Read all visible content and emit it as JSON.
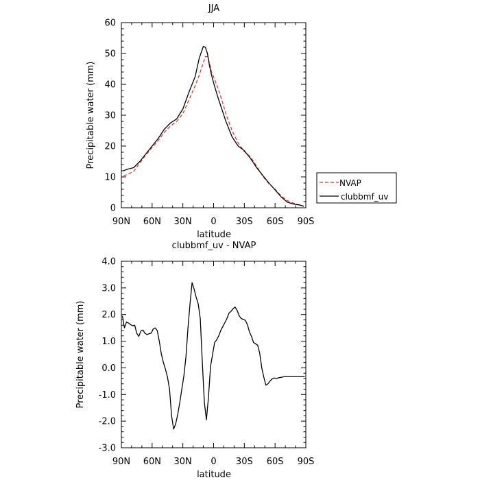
{
  "colors": {
    "nvap": "#e8342a",
    "clubbmf_uv": "#000000",
    "axis": "#000000"
  },
  "chart_data": [
    {
      "type": "line",
      "title": "JJA",
      "xlabel": "latitude",
      "ylabel": "Precipitable water (mm)",
      "xlim": [
        90,
        -90
      ],
      "ylim": [
        0,
        60
      ],
      "x_tick_values": [
        90,
        60,
        30,
        0,
        -30,
        -60,
        -90
      ],
      "x_tick_labels": [
        "90N",
        "60N",
        "30N",
        "0",
        "30S",
        "60S",
        "90S"
      ],
      "y_tick_values": [
        0,
        10,
        20,
        30,
        40,
        50,
        60
      ],
      "y_tick_labels": [
        "0",
        "10",
        "20",
        "30",
        "40",
        "50",
        "60"
      ],
      "legend": {
        "placement": "outside-right",
        "entries": [
          {
            "label": "NVAP",
            "series": "NVAP"
          },
          {
            "label": "clubbmf_uv",
            "series": "clubbmf_uv"
          }
        ]
      },
      "series": [
        {
          "name": "NVAP",
          "color": "#e8342a",
          "dash": "dashed",
          "x": [
            88,
            84,
            78,
            72,
            66,
            60,
            54,
            48,
            42,
            36,
            30,
            24,
            18,
            14,
            10,
            8,
            6,
            4,
            2,
            0,
            -4,
            -8,
            -12,
            -18,
            -24,
            -30,
            -36,
            -42,
            -48,
            -54,
            -60,
            -66,
            -72,
            -78,
            -84,
            -88
          ],
          "y": [
            10.3,
            10.8,
            11.8,
            14.5,
            17.2,
            19.5,
            21.8,
            24.5,
            26.5,
            28.0,
            30.5,
            35.0,
            39.5,
            43.0,
            47.0,
            49.0,
            49.0,
            47.0,
            44.0,
            42.5,
            39.0,
            35.0,
            30.5,
            25.0,
            21.0,
            18.2,
            16.5,
            13.5,
            10.2,
            7.8,
            6.0,
            3.8,
            2.3,
            1.5,
            0.9,
            0.5
          ]
        },
        {
          "name": "clubbmf_uv",
          "color": "#000000",
          "dash": "solid",
          "x": [
            88,
            84,
            78,
            72,
            66,
            60,
            54,
            48,
            42,
            36,
            30,
            24,
            18,
            14,
            10,
            8,
            6,
            4,
            2,
            0,
            -4,
            -8,
            -12,
            -18,
            -24,
            -30,
            -36,
            -42,
            -48,
            -54,
            -60,
            -66,
            -72,
            -78,
            -84,
            -88
          ],
          "y": [
            12.0,
            12.5,
            13.0,
            15.0,
            17.5,
            20.0,
            22.5,
            25.5,
            27.5,
            28.8,
            32.0,
            37.5,
            42.5,
            48.5,
            52.3,
            52.0,
            50.0,
            46.0,
            43.0,
            40.5,
            36.0,
            32.0,
            28.0,
            23.0,
            20.0,
            18.5,
            16.0,
            13.0,
            10.5,
            8.0,
            5.8,
            3.5,
            1.8,
            1.2,
            0.9,
            0.5
          ]
        }
      ]
    },
    {
      "type": "line",
      "title": "clubbmf_uv - NVAP",
      "xlabel": "latitude",
      "ylabel": "Precipitable water (mm)",
      "xlim": [
        90,
        -90
      ],
      "ylim": [
        -3.0,
        4.0
      ],
      "x_tick_values": [
        90,
        60,
        30,
        0,
        -30,
        -60,
        -90
      ],
      "x_tick_labels": [
        "90N",
        "60N",
        "30N",
        "0",
        "30S",
        "60S",
        "90S"
      ],
      "y_tick_values": [
        -3,
        -2,
        -1,
        0,
        1,
        2,
        3,
        4
      ],
      "y_tick_labels": [
        "-3.0",
        "-2.0",
        "-1.0",
        "0.0",
        "1.0",
        "2.0",
        "3.0",
        "4.0"
      ],
      "series": [
        {
          "color": "#000000",
          "dash": "solid",
          "x": [
            89,
            87,
            85,
            83,
            81,
            79,
            77,
            75,
            73,
            71,
            69,
            67,
            65,
            63,
            61,
            59,
            57,
            55,
            53,
            51,
            49,
            47,
            45,
            43,
            41,
            39,
            37,
            35,
            33,
            31,
            29,
            27,
            25,
            23,
            21,
            19,
            17,
            15,
            13,
            11,
            9,
            7,
            5,
            3,
            1,
            -1,
            -3,
            -5,
            -7,
            -9,
            -11,
            -13,
            -15,
            -17,
            -19,
            -21,
            -23,
            -25,
            -27,
            -29,
            -31,
            -33,
            -35,
            -37,
            -39,
            -41,
            -43,
            -45,
            -47,
            -49,
            -51,
            -53,
            -55,
            -57,
            -59,
            -61,
            -63,
            -65,
            -67,
            -69,
            -71,
            -73,
            -75,
            -77,
            -79,
            -81,
            -83,
            -85,
            -87,
            -89
          ],
          "y": [
            1.95,
            1.5,
            1.72,
            1.68,
            1.62,
            1.58,
            1.6,
            1.3,
            1.18,
            1.38,
            1.42,
            1.3,
            1.25,
            1.28,
            1.3,
            1.45,
            1.5,
            1.4,
            1.0,
            0.52,
            0.2,
            -0.05,
            -0.35,
            -0.8,
            -1.8,
            -2.3,
            -2.1,
            -1.75,
            -1.3,
            -0.8,
            -0.3,
            0.4,
            1.5,
            2.4,
            3.2,
            2.95,
            2.65,
            2.4,
            1.85,
            0.2,
            -1.3,
            -1.95,
            -1.1,
            0.05,
            0.5,
            0.95,
            1.05,
            1.2,
            1.4,
            1.55,
            1.7,
            1.85,
            2.05,
            2.12,
            2.22,
            2.28,
            2.15,
            1.95,
            1.85,
            1.82,
            1.78,
            1.62,
            1.35,
            1.18,
            0.95,
            0.9,
            0.85,
            0.55,
            0.0,
            -0.35,
            -0.65,
            -0.6,
            -0.5,
            -0.42,
            -0.38,
            -0.4,
            -0.38,
            -0.36,
            -0.35,
            -0.33,
            -0.33,
            -0.33,
            -0.33,
            -0.33,
            -0.33,
            -0.33,
            -0.33,
            -0.33,
            -0.33,
            -0.33
          ]
        }
      ]
    }
  ]
}
